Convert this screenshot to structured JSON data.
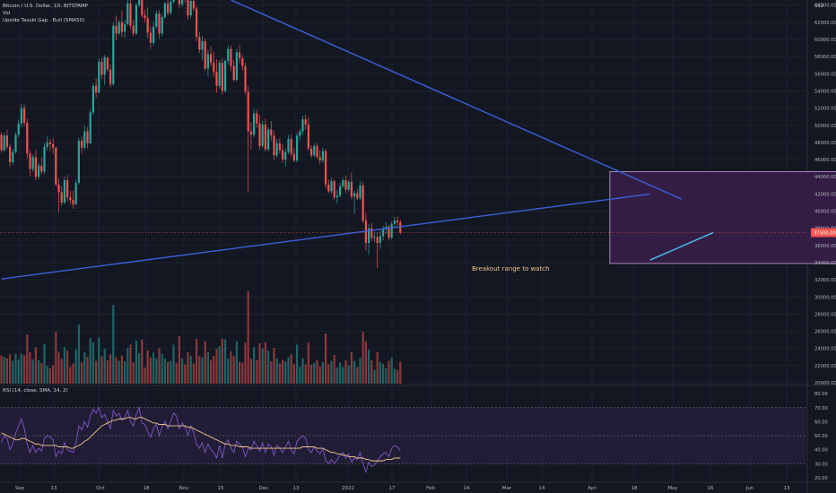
{
  "header": {
    "symbol_line": "Bitcoin / U.S. Dollar, 1D, BITSTAMP",
    "vol_line": "Vol",
    "indicator_line": "Upside Tasuki Gap - Bull (SMA50)",
    "currency": "USD"
  },
  "rsi_header": "RSI (14, close, SMA, 14, 2)",
  "annotation": "Breakout range to watch",
  "colors": {
    "background": "#131722",
    "up": "#26a69a",
    "down": "#ef5350",
    "trendline": "#3d5fd9",
    "box_fill": "#3a1f4a",
    "box_border": "#c9a0dc",
    "rsi_line": "#7e57c2",
    "rsi_ma": "#f0c78a",
    "rsi_band": "#2a2140",
    "price_badge": "#ef5350"
  },
  "chart_data": {
    "type": "candlestick",
    "price_axis": {
      "ticks": [
        "64000.00",
        "62000.00",
        "60000.00",
        "58000.00",
        "56000.00",
        "54000.00",
        "52000.00",
        "50000.00",
        "48000.00",
        "46000.00",
        "44000.00",
        "42000.00",
        "40000.00",
        "38000.00",
        "36000.00",
        "34000.00",
        "32000.00",
        "30000.00",
        "28000.00",
        "26000.00",
        "24000.00",
        "22000.00",
        "20000.00"
      ],
      "tick_values": [
        64000,
        62000,
        60000,
        58000,
        56000,
        54000,
        52000,
        50000,
        48000,
        46000,
        44000,
        42000,
        40000,
        38000,
        36000,
        34000,
        32000,
        30000,
        28000,
        26000,
        24000,
        22000,
        20000
      ],
      "current_price": 37500,
      "current_price_label": "37500.00"
    },
    "rsi_axis": {
      "ticks": [
        "80.00",
        "70.00",
        "60.00",
        "50.00",
        "40.00",
        "30.00",
        "20.00"
      ],
      "tick_values": [
        80,
        70,
        60,
        50,
        40,
        30,
        20
      ],
      "band": [
        30,
        70
      ]
    },
    "time_axis": [
      "Sep",
      "13",
      "Oct",
      "18",
      "Nov",
      "15",
      "Dec",
      "13",
      "2022",
      "17",
      "Feb",
      "14",
      "Mar",
      "14",
      "Apr",
      "18",
      "May",
      "16",
      "Jun",
      "13"
    ],
    "trendlines": [
      {
        "from": {
          "i": 80,
          "p": 64600
        },
        "to": {
          "i": 237,
          "p": 41400
        }
      },
      {
        "from": {
          "i": 0,
          "p": 32100
        },
        "to": {
          "i": 226,
          "p": 42000
        }
      },
      {
        "from": {
          "i": 226,
          "p": 34300
        },
        "to": {
          "i": 248,
          "p": 37500
        }
      }
    ],
    "range_box": {
      "start_i": 212,
      "end_i": 308,
      "high": 44600,
      "low": 33900
    },
    "ohlc": [
      [
        48900,
        49200,
        46800,
        47100
      ],
      [
        47100,
        49100,
        46900,
        48800
      ],
      [
        48800,
        49500,
        47200,
        47500
      ],
      [
        47500,
        47800,
        45200,
        45700
      ],
      [
        45700,
        47300,
        45400,
        46900
      ],
      [
        46900,
        49200,
        46700,
        48900
      ],
      [
        48900,
        50700,
        48600,
        50200
      ],
      [
        50200,
        52500,
        49800,
        52000
      ],
      [
        52000,
        52400,
        49900,
        50300
      ],
      [
        50300,
        50800,
        46100,
        46700
      ],
      [
        46700,
        47100,
        44100,
        44900
      ],
      [
        44900,
        46600,
        44600,
        46300
      ],
      [
        46300,
        47100,
        43600,
        44000
      ],
      [
        44000,
        45600,
        43700,
        45300
      ],
      [
        45300,
        46300,
        44300,
        44600
      ],
      [
        44600,
        47900,
        44300,
        47500
      ],
      [
        47500,
        48700,
        47100,
        48000
      ],
      [
        48000,
        48400,
        47000,
        47800
      ],
      [
        47800,
        48500,
        46700,
        47400
      ],
      [
        47400,
        47500,
        42900,
        43100
      ],
      [
        43100,
        43800,
        39800,
        42200
      ],
      [
        42200,
        42900,
        40600,
        41000
      ],
      [
        41000,
        44000,
        40800,
        43600
      ],
      [
        43600,
        44200,
        41100,
        41600
      ],
      [
        41600,
        42400,
        40800,
        41300
      ],
      [
        41300,
        42400,
        40300,
        40800
      ],
      [
        40800,
        43600,
        40700,
        43300
      ],
      [
        43300,
        48500,
        43100,
        48200
      ],
      [
        48200,
        48700,
        46700,
        47400
      ],
      [
        47400,
        50000,
        47100,
        49300
      ],
      [
        49300,
        49800,
        47300,
        47900
      ],
      [
        47900,
        51800,
        47800,
        51500
      ],
      [
        51500,
        54900,
        51200,
        54600
      ],
      [
        54600,
        55500,
        53200,
        53800
      ],
      [
        53800,
        57800,
        53700,
        57400
      ],
      [
        57400,
        57900,
        55400,
        55900
      ],
      [
        55900,
        58200,
        54700,
        57900
      ],
      [
        57900,
        58000,
        56200,
        56500
      ],
      [
        56500,
        57100,
        54400,
        54800
      ],
      [
        54800,
        62000,
        54600,
        61600
      ],
      [
        61600,
        62800,
        59900,
        60700
      ],
      [
        60700,
        62300,
        60500,
        62000
      ],
      [
        62000,
        63400,
        60300,
        60900
      ],
      [
        60900,
        62300,
        60200,
        61800
      ],
      [
        61800,
        64800,
        61600,
        64200
      ],
      [
        64200,
        64900,
        61200,
        61600
      ],
      [
        61600,
        62300,
        60400,
        60700
      ],
      [
        60700,
        64300,
        60500,
        64000
      ],
      [
        64000,
        66300,
        63800,
        66100
      ],
      [
        66100,
        66500,
        62500,
        62800
      ],
      [
        62800,
        63500,
        62000,
        62500
      ],
      [
        62500,
        63700,
        60200,
        60800
      ],
      [
        60800,
        61500,
        58900,
        59600
      ],
      [
        59600,
        62100,
        59300,
        61500
      ],
      [
        61500,
        63400,
        61300,
        63000
      ],
      [
        63000,
        63400,
        60100,
        60700
      ],
      [
        60700,
        63000,
        60400,
        62600
      ],
      [
        62600,
        64400,
        62400,
        64200
      ],
      [
        64200,
        64600,
        62800,
        63100
      ],
      [
        63100,
        64700,
        62900,
        64400
      ],
      [
        64400,
        67600,
        64200,
        67300
      ],
      [
        67300,
        68500,
        66200,
        66900
      ],
      [
        66900,
        68800,
        63600,
        64100
      ],
      [
        64100,
        66000,
        63800,
        65500
      ],
      [
        65500,
        65900,
        64300,
        64700
      ],
      [
        64700,
        65200,
        62300,
        62800
      ],
      [
        62800,
        64900,
        62500,
        64500
      ],
      [
        64500,
        65000,
        63300,
        63600
      ],
      [
        63600,
        64000,
        59800,
        60300
      ],
      [
        60300,
        60900,
        58400,
        58800
      ],
      [
        58800,
        60400,
        57600,
        59800
      ],
      [
        59800,
        60100,
        56300,
        56600
      ],
      [
        56600,
        58800,
        55700,
        58300
      ],
      [
        58300,
        59200,
        56900,
        57300
      ],
      [
        57300,
        58600,
        55600,
        56200
      ],
      [
        56200,
        57700,
        53800,
        54600
      ],
      [
        54600,
        57600,
        54300,
        57300
      ],
      [
        57300,
        57800,
        53600,
        54000
      ],
      [
        54000,
        57700,
        53800,
        57500
      ],
      [
        57500,
        59300,
        57100,
        58900
      ],
      [
        58900,
        59300,
        56300,
        56900
      ],
      [
        56900,
        57600,
        55100,
        55300
      ],
      [
        55300,
        58900,
        55100,
        58500
      ],
      [
        58500,
        59400,
        57200,
        57800
      ],
      [
        57800,
        58200,
        56400,
        56900
      ],
      [
        56900,
        57300,
        53600,
        53900
      ],
      [
        53900,
        54600,
        42300,
        49300
      ],
      [
        49300,
        50300,
        47200,
        48900
      ],
      [
        48900,
        51900,
        48600,
        51400
      ],
      [
        51400,
        51800,
        49700,
        50200
      ],
      [
        50200,
        51200,
        47200,
        47600
      ],
      [
        47600,
        50500,
        47400,
        50100
      ],
      [
        50100,
        50800,
        46900,
        47200
      ],
      [
        47200,
        49800,
        47000,
        49500
      ],
      [
        49500,
        50500,
        48200,
        48800
      ],
      [
        48800,
        49400,
        46000,
        46500
      ],
      [
        46500,
        48400,
        46200,
        47900
      ],
      [
        47900,
        48500,
        46700,
        47100
      ],
      [
        47100,
        47800,
        45600,
        46000
      ],
      [
        46000,
        47300,
        45200,
        46900
      ],
      [
        46900,
        48900,
        46600,
        48400
      ],
      [
        48400,
        49000,
        46300,
        46700
      ],
      [
        46700,
        47400,
        45700,
        45900
      ],
      [
        45900,
        49100,
        45700,
        48800
      ],
      [
        48800,
        49600,
        48200,
        49300
      ],
      [
        49300,
        51100,
        48900,
        50700
      ],
      [
        50700,
        51300,
        49500,
        50100
      ],
      [
        50100,
        50900,
        47000,
        47300
      ],
      [
        47300,
        47700,
        46200,
        46500
      ],
      [
        46500,
        47900,
        46300,
        47600
      ],
      [
        47600,
        48000,
        46100,
        46300
      ],
      [
        46300,
        47100,
        45500,
        45900
      ],
      [
        45900,
        47400,
        45600,
        47000
      ],
      [
        47000,
        47200,
        42600,
        43100
      ],
      [
        43100,
        43700,
        42100,
        42300
      ],
      [
        42300,
        43900,
        42000,
        43500
      ],
      [
        43500,
        43700,
        41300,
        41600
      ],
      [
        41600,
        42500,
        40900,
        41800
      ],
      [
        41800,
        43300,
        41600,
        42900
      ],
      [
        42900,
        43900,
        42700,
        43600
      ],
      [
        43600,
        44200,
        42100,
        42500
      ],
      [
        42500,
        43600,
        42300,
        43400
      ],
      [
        43400,
        44500,
        41400,
        41700
      ],
      [
        41700,
        42400,
        39700,
        42100
      ],
      [
        42100,
        42600,
        41300,
        41500
      ],
      [
        41500,
        43500,
        41300,
        43000
      ],
      [
        43000,
        43400,
        38600,
        38900
      ],
      [
        38900,
        39800,
        35400,
        36300
      ],
      [
        36300,
        38500,
        34900,
        38000
      ],
      [
        38000,
        38600,
        36500,
        36900
      ],
      [
        36900,
        37600,
        36400,
        37000
      ],
      [
        37000,
        37500,
        33400,
        36300
      ],
      [
        36300,
        37700,
        35600,
        37100
      ],
      [
        37100,
        38300,
        36600,
        37900
      ],
      [
        37900,
        38700,
        37400,
        38200
      ],
      [
        38200,
        38400,
        36600,
        36900
      ],
      [
        36900,
        38800,
        36700,
        38500
      ],
      [
        38500,
        39300,
        38200,
        38900
      ],
      [
        38900,
        39400,
        38300,
        38700
      ],
      [
        38700,
        39000,
        37300,
        37500
      ]
    ],
    "volume_scale": "relative",
    "rsi_values": [
      45,
      50,
      48,
      40,
      44,
      52,
      57,
      62,
      55,
      44,
      38,
      43,
      38,
      41,
      39,
      48,
      50,
      49,
      47,
      35,
      39,
      37,
      45,
      40,
      39,
      38,
      45,
      57,
      54,
      60,
      56,
      64,
      69,
      66,
      70,
      63,
      65,
      60,
      55,
      68,
      64,
      66,
      61,
      63,
      68,
      60,
      57,
      65,
      70,
      59,
      58,
      53,
      49,
      55,
      58,
      50,
      56,
      60,
      55,
      60,
      66,
      64,
      55,
      59,
      56,
      50,
      57,
      52,
      44,
      41,
      45,
      38,
      44,
      40,
      38,
      34,
      43,
      34,
      44,
      47,
      41,
      38,
      46,
      44,
      42,
      35,
      41,
      40,
      46,
      43,
      39,
      45,
      38,
      44,
      42,
      36,
      43,
      41,
      38,
      42,
      46,
      40,
      37,
      46,
      48,
      50,
      48,
      40,
      38,
      42,
      39,
      37,
      41,
      32,
      30,
      33,
      30,
      33,
      36,
      38,
      34,
      37,
      31,
      34,
      33,
      38,
      30,
      24,
      31,
      28,
      29,
      32,
      35,
      37,
      38,
      35,
      41,
      43,
      42,
      39
    ],
    "rsi_ma_values": [
      52,
      51,
      50,
      49,
      48,
      47,
      47,
      48,
      48,
      47,
      46,
      45,
      44,
      44,
      43,
      43,
      43,
      43,
      43,
      43,
      42,
      42,
      42,
      42,
      41,
      41,
      42,
      43,
      44,
      46,
      47,
      49,
      51,
      53,
      55,
      57,
      58,
      59,
      60,
      61,
      61,
      62,
      62,
      62,
      63,
      63,
      62,
      62,
      63,
      63,
      62,
      61,
      60,
      59,
      59,
      58,
      58,
      58,
      57,
      57,
      57,
      57,
      57,
      57,
      57,
      56,
      56,
      55,
      54,
      53,
      52,
      51,
      50,
      49,
      48,
      47,
      46,
      45,
      44,
      44,
      43,
      43,
      43,
      42,
      42,
      42,
      42,
      41,
      41,
      41,
      41,
      41,
      41,
      41,
      41,
      41,
      41,
      41,
      41,
      41,
      41,
      41,
      41,
      41,
      41,
      42,
      42,
      42,
      42,
      42,
      41,
      41,
      41,
      40,
      39,
      38,
      38,
      37,
      37,
      36,
      36,
      35,
      35,
      35,
      34,
      34,
      34,
      33,
      33,
      32,
      32,
      32,
      32,
      32,
      33,
      33,
      33,
      34,
      34,
      34
    ]
  }
}
